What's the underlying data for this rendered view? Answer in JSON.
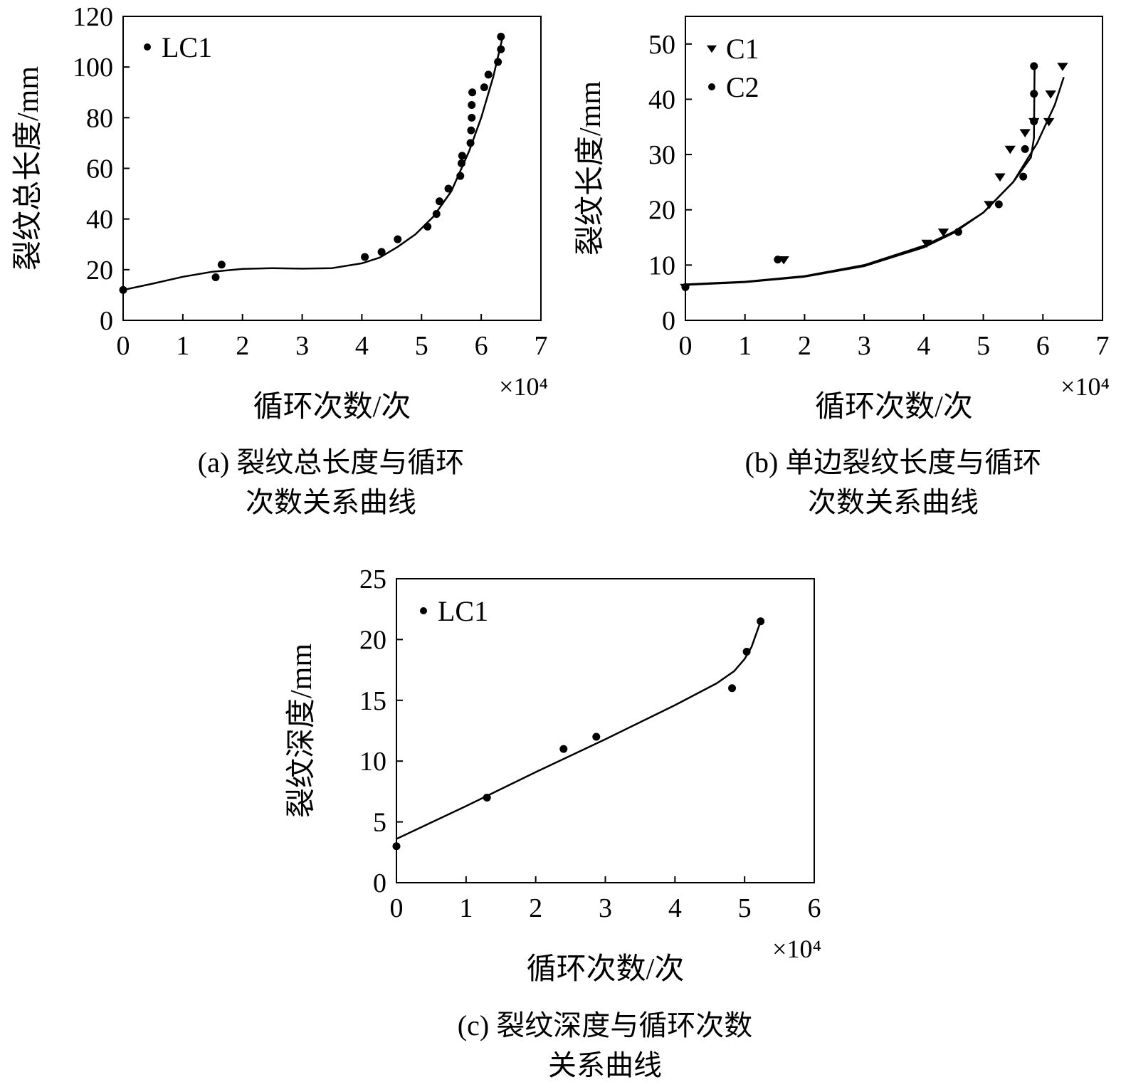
{
  "chart_data": [
    {
      "id": "a",
      "type": "scatter",
      "xlabel": "循环次数/次",
      "ylabel": "裂纹总长度/mm",
      "x_multiplier": "×10⁴",
      "xlim": [
        0,
        7
      ],
      "ylim": [
        0,
        120
      ],
      "xticks": [
        0,
        1,
        2,
        3,
        4,
        5,
        6,
        7
      ],
      "yticks": [
        0,
        20,
        40,
        60,
        80,
        100,
        120
      ],
      "grid": false,
      "legend": "top-left",
      "caption_line1": "(a) 裂纹总长度与循环",
      "caption_line2": "次数关系曲线",
      "series": [
        {
          "name": "LC1",
          "marker": "circle",
          "points": [
            [
              0,
              12
            ],
            [
              1.55,
              17
            ],
            [
              1.65,
              22
            ],
            [
              4.05,
              25
            ],
            [
              4.33,
              27
            ],
            [
              4.6,
              32
            ],
            [
              5.1,
              37
            ],
            [
              5.25,
              42
            ],
            [
              5.3,
              47
            ],
            [
              5.45,
              52
            ],
            [
              5.65,
              57
            ],
            [
              5.67,
              62
            ],
            [
              5.68,
              65
            ],
            [
              5.82,
              70
            ],
            [
              5.83,
              75
            ],
            [
              5.84,
              80
            ],
            [
              5.84,
              85
            ],
            [
              5.85,
              90
            ],
            [
              6.05,
              92
            ],
            [
              6.12,
              97
            ],
            [
              6.28,
              102
            ],
            [
              6.33,
              107
            ],
            [
              6.33,
              112
            ]
          ]
        }
      ],
      "fit_lines": [
        {
          "points": [
            [
              0,
              12
            ],
            [
              0.5,
              14.5
            ],
            [
              1,
              17.2
            ],
            [
              1.5,
              19.2
            ],
            [
              2,
              20.3
            ],
            [
              2.5,
              20.6
            ],
            [
              3,
              20.4
            ],
            [
              3.5,
              20.6
            ],
            [
              4,
              22.5
            ],
            [
              4.3,
              24.8
            ],
            [
              4.6,
              29
            ],
            [
              4.9,
              34
            ],
            [
              5.2,
              41
            ],
            [
              5.5,
              51
            ],
            [
              5.8,
              67
            ],
            [
              6.0,
              80
            ],
            [
              6.2,
              96
            ],
            [
              6.35,
              111
            ]
          ]
        }
      ]
    },
    {
      "id": "b",
      "type": "scatter",
      "xlabel": "循环次数/次",
      "ylabel": "裂纹长度/mm",
      "x_multiplier": "×10⁴",
      "xlim": [
        0,
        7
      ],
      "ylim": [
        0,
        55
      ],
      "xticks": [
        0,
        1,
        2,
        3,
        4,
        5,
        6,
        7
      ],
      "yticks": [
        0,
        10,
        20,
        30,
        40,
        50
      ],
      "grid": false,
      "legend": "top-left",
      "caption_line1": "(b) 单边裂纹长度与循环",
      "caption_line2": "次数关系曲线",
      "series": [
        {
          "name": "C1",
          "marker": "triangle-down",
          "points": [
            [
              0,
              6
            ],
            [
              1.65,
              11
            ],
            [
              4.05,
              14
            ],
            [
              4.33,
              16
            ],
            [
              5.1,
              21
            ],
            [
              5.28,
              26
            ],
            [
              5.45,
              31
            ],
            [
              5.7,
              34
            ],
            [
              5.85,
              36
            ],
            [
              6.1,
              36
            ],
            [
              6.13,
              41
            ],
            [
              6.33,
              46
            ]
          ]
        },
        {
          "name": "C2",
          "marker": "circle",
          "points": [
            [
              0,
              6
            ],
            [
              1.55,
              11
            ],
            [
              4.58,
              16
            ],
            [
              5.26,
              21
            ],
            [
              5.67,
              26
            ],
            [
              5.7,
              31
            ],
            [
              5.85,
              36
            ],
            [
              5.85,
              41
            ],
            [
              5.85,
              46
            ]
          ]
        }
      ],
      "fit_lines": [
        {
          "points": [
            [
              0,
              6.5
            ],
            [
              1,
              7
            ],
            [
              2,
              8
            ],
            [
              3,
              10
            ],
            [
              4,
              13.5
            ],
            [
              4.5,
              16
            ],
            [
              5,
              19.5
            ],
            [
              5.5,
              25
            ],
            [
              5.8,
              29.5
            ],
            [
              5.85,
              33
            ],
            [
              5.86,
              46
            ]
          ]
        },
        {
          "points": [
            [
              0,
              6.4
            ],
            [
              1,
              6.9
            ],
            [
              2,
              7.9
            ],
            [
              3,
              9.8
            ],
            [
              4,
              13.2
            ],
            [
              4.5,
              15.8
            ],
            [
              5,
              19.5
            ],
            [
              5.5,
              25
            ],
            [
              5.9,
              32
            ],
            [
              6.2,
              39
            ],
            [
              6.35,
              44
            ]
          ]
        }
      ]
    },
    {
      "id": "c",
      "type": "scatter",
      "xlabel": "循环次数/次",
      "ylabel": "裂纹深度/mm",
      "x_multiplier": "×10⁴",
      "xlim": [
        0,
        6
      ],
      "ylim": [
        0,
        25
      ],
      "xticks": [
        0,
        1,
        2,
        3,
        4,
        5,
        6
      ],
      "yticks": [
        0,
        5,
        10,
        15,
        20,
        25
      ],
      "grid": false,
      "legend": "top-left",
      "caption_line1": "(c) 裂纹深度与循环次数",
      "caption_line2": "关系曲线",
      "series": [
        {
          "name": "LC1",
          "marker": "circle",
          "points": [
            [
              0,
              3
            ],
            [
              1.3,
              7
            ],
            [
              2.4,
              11
            ],
            [
              2.87,
              12
            ],
            [
              4.82,
              16
            ],
            [
              5.03,
              19
            ],
            [
              5.23,
              21.5
            ]
          ]
        }
      ],
      "fit_lines": [
        {
          "points": [
            [
              0,
              3.6
            ],
            [
              1,
              6.3
            ],
            [
              2,
              9.1
            ],
            [
              3,
              11.8
            ],
            [
              4,
              14.6
            ],
            [
              4.6,
              16.4
            ],
            [
              4.85,
              17.4
            ],
            [
              5.0,
              18.4
            ],
            [
              5.1,
              19.4
            ],
            [
              5.2,
              21.0
            ],
            [
              5.23,
              21.5
            ]
          ]
        }
      ]
    }
  ]
}
